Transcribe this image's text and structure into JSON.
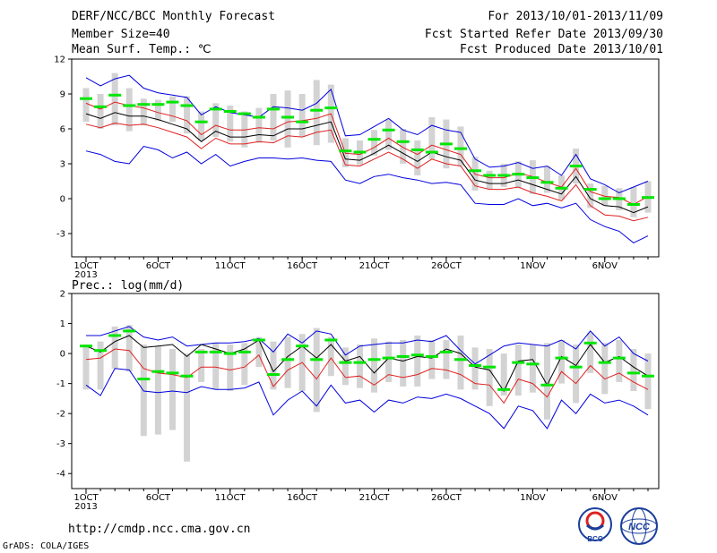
{
  "header": {
    "title": "DERF/NCC/BCC Monthly Forecast",
    "member_size": "Member Size=40",
    "variable_top": "Mean Surf. Temp.: ℃",
    "valid_period": "For 2013/10/01-2013/11/09",
    "fcst_started": "Fcst Started Refer Date 2013/09/30",
    "fcst_produced": "Fcst Produced Date 2013/10/01"
  },
  "footer": {
    "url": "http://cmdp.ncc.cma.gov.cn",
    "credit": "GrADS: COLA/IGES",
    "logo_bcc": "BCC",
    "logo_ncc": "NCC"
  },
  "colors": {
    "box": "#d3d3d3",
    "median": "#00e600",
    "mean": "#000000",
    "std_band": "#e02020",
    "minmax": "#0000dd"
  },
  "chart_data": [
    {
      "type": "line",
      "panel": "top",
      "ylabel": "Mean Surf. Temp.: ℃",
      "ylim": [
        -5,
        12
      ],
      "yticks": [
        -3,
        0,
        3,
        6,
        9,
        12
      ],
      "x": [
        1,
        2,
        3,
        4,
        5,
        6,
        7,
        8,
        9,
        10,
        11,
        12,
        13,
        14,
        15,
        16,
        17,
        18,
        19,
        20,
        21,
        22,
        23,
        24,
        25,
        26,
        27,
        28,
        29,
        30,
        31,
        32,
        33,
        34,
        35,
        36,
        37,
        38,
        39,
        40
      ],
      "xticks": [
        {
          "x": 1,
          "label": "1OCT",
          "sub": "2013"
        },
        {
          "x": 6,
          "label": "6OCT"
        },
        {
          "x": 11,
          "label": "11OCT"
        },
        {
          "x": 16,
          "label": "16OCT"
        },
        {
          "x": 21,
          "label": "21OCT"
        },
        {
          "x": 26,
          "label": "26OCT"
        },
        {
          "x": 32,
          "label": "1NOV"
        },
        {
          "x": 37,
          "label": "6NOV"
        }
      ],
      "series": [
        {
          "role": "max",
          "values": [
            10.4,
            9.7,
            10.3,
            10.6,
            9.5,
            9.1,
            8.9,
            8.7,
            7.2,
            7.9,
            7.4,
            7.2,
            7.0,
            7.9,
            7.8,
            7.6,
            8.2,
            9.4,
            5.4,
            5.5,
            6.2,
            6.9,
            5.9,
            5.5,
            6.3,
            5.9,
            5.7,
            3.4,
            2.7,
            2.8,
            3.1,
            2.6,
            2.8,
            2.0,
            3.8,
            1.7,
            1.2,
            0.5,
            1.0,
            1.5
          ]
        },
        {
          "role": "mean_plus_std",
          "values": [
            8.2,
            7.7,
            8.3,
            8.0,
            7.8,
            7.4,
            7.1,
            6.7,
            5.5,
            6.3,
            5.9,
            5.9,
            6.1,
            6.0,
            6.6,
            6.7,
            6.9,
            7.3,
            3.9,
            3.8,
            4.4,
            5.2,
            4.4,
            3.8,
            4.6,
            4.2,
            3.8,
            2.1,
            1.8,
            1.8,
            2.2,
            1.9,
            1.4,
            1.0,
            2.6,
            0.6,
            0.2,
            0.1,
            -0.5,
            0.2
          ]
        },
        {
          "role": "mean",
          "values": [
            7.3,
            6.9,
            7.4,
            7.1,
            7.1,
            6.8,
            6.4,
            6.0,
            4.9,
            5.8,
            5.3,
            5.3,
            5.5,
            5.4,
            6.0,
            6.0,
            6.3,
            6.6,
            3.4,
            3.3,
            3.9,
            4.6,
            3.9,
            3.2,
            4.0,
            3.6,
            3.3,
            1.6,
            1.3,
            1.3,
            1.6,
            1.2,
            0.8,
            0.4,
            1.9,
            0.0,
            -0.6,
            -0.7,
            -1.2,
            -0.7
          ]
        },
        {
          "role": "mean_minus_std",
          "values": [
            6.4,
            6.1,
            6.5,
            6.3,
            6.4,
            6.1,
            5.7,
            5.3,
            4.3,
            5.2,
            4.7,
            4.7,
            4.9,
            4.8,
            5.4,
            5.3,
            5.7,
            5.9,
            2.9,
            2.8,
            3.4,
            4.0,
            3.4,
            2.6,
            3.4,
            3.0,
            2.8,
            1.1,
            0.8,
            0.8,
            1.0,
            0.5,
            0.2,
            -0.2,
            1.2,
            -0.6,
            -1.4,
            -1.5,
            -1.9,
            -1.6
          ]
        },
        {
          "role": "min",
          "values": [
            4.1,
            3.8,
            3.2,
            3.0,
            4.5,
            4.2,
            3.5,
            4.0,
            3.0,
            3.8,
            2.8,
            3.2,
            3.5,
            3.5,
            3.4,
            3.5,
            3.3,
            3.2,
            1.6,
            1.3,
            1.9,
            2.1,
            1.8,
            1.6,
            1.3,
            1.4,
            1.2,
            -0.4,
            -0.5,
            -0.5,
            0.0,
            -0.6,
            -0.4,
            -0.8,
            -0.4,
            -1.8,
            -2.4,
            -2.8,
            -3.8,
            -3.2
          ]
        },
        {
          "role": "median",
          "values": [
            8.6,
            7.9,
            8.9,
            8.0,
            8.1,
            8.1,
            8.3,
            8.0,
            6.6,
            7.7,
            7.5,
            7.3,
            7.0,
            7.7,
            7.0,
            6.6,
            7.6,
            7.8,
            4.1,
            4.0,
            5.1,
            5.9,
            4.9,
            4.2,
            4.0,
            4.7,
            4.3,
            2.4,
            2.0,
            2.0,
            2.1,
            1.8,
            1.4,
            0.9,
            2.8,
            0.8,
            0.0,
            0.0,
            -0.5,
            0.1
          ]
        },
        {
          "role": "box_high",
          "values": [
            9.5,
            9.0,
            10.8,
            9.5,
            8.6,
            8.5,
            8.8,
            8.8,
            7.5,
            8.2,
            8.0,
            7.5,
            7.8,
            9.0,
            9.3,
            9.0,
            10.2,
            9.8,
            5.2,
            5.0,
            5.9,
            6.8,
            6.0,
            5.0,
            7.0,
            6.8,
            6.2,
            3.6,
            2.4,
            3.0,
            3.2,
            3.3,
            2.8,
            2.0,
            4.3,
            1.3,
            1.1,
            0.9,
            1.0,
            1.5
          ]
        },
        {
          "role": "box_low",
          "values": [
            6.6,
            6.0,
            6.3,
            5.8,
            6.3,
            6.7,
            6.6,
            5.6,
            5.0,
            5.3,
            4.9,
            4.4,
            4.8,
            5.0,
            4.4,
            5.3,
            4.6,
            4.8,
            2.7,
            2.9,
            3.7,
            4.2,
            3.0,
            2.0,
            3.4,
            2.6,
            2.8,
            0.7,
            0.8,
            1.0,
            0.9,
            0.4,
            0.5,
            -0.1,
            1.3,
            -0.8,
            -0.6,
            -1.0,
            -1.6,
            -1.2
          ]
        }
      ]
    },
    {
      "type": "line",
      "panel": "bottom",
      "ylabel": "Prec.: log(mm/d)",
      "ylim": [
        -4.5,
        2
      ],
      "yticks": [
        -4,
        -3,
        -2,
        -1,
        0,
        1,
        2
      ],
      "x": [
        1,
        2,
        3,
        4,
        5,
        6,
        7,
        8,
        9,
        10,
        11,
        12,
        13,
        14,
        15,
        16,
        17,
        18,
        19,
        20,
        21,
        22,
        23,
        24,
        25,
        26,
        27,
        28,
        29,
        30,
        31,
        32,
        33,
        34,
        35,
        36,
        37,
        38,
        39,
        40
      ],
      "xticks": [
        {
          "x": 1,
          "label": "1OCT",
          "sub": "2013"
        },
        {
          "x": 6,
          "label": "6OCT"
        },
        {
          "x": 11,
          "label": "11OCT"
        },
        {
          "x": 16,
          "label": "16OCT"
        },
        {
          "x": 21,
          "label": "21OCT"
        },
        {
          "x": 26,
          "label": "26OCT"
        },
        {
          "x": 32,
          "label": "1NOV"
        },
        {
          "x": 37,
          "label": "6NOV"
        }
      ],
      "series": [
        {
          "role": "max",
          "values": [
            0.6,
            0.6,
            0.75,
            0.9,
            0.55,
            0.45,
            0.55,
            0.25,
            0.3,
            0.35,
            0.35,
            0.4,
            0.5,
            0.05,
            0.65,
            0.35,
            0.75,
            0.65,
            -0.05,
            0.25,
            0.3,
            0.35,
            0.35,
            0.45,
            0.4,
            0.6,
            0.1,
            -0.35,
            -0.05,
            0.25,
            0.35,
            0.3,
            0.25,
            0.45,
            0.15,
            0.75,
            0.25,
            0.55,
            0.0,
            -0.25
          ]
        },
        {
          "role": "mean",
          "values": [
            0.25,
            0.05,
            0.4,
            0.6,
            0.2,
            0.25,
            0.3,
            -0.1,
            0.3,
            0.15,
            0.0,
            0.15,
            0.45,
            -0.6,
            -0.1,
            0.25,
            -0.15,
            0.3,
            -0.25,
            -0.1,
            -0.65,
            -0.15,
            -0.25,
            -0.1,
            -0.15,
            0.15,
            0.0,
            -0.45,
            -0.55,
            -1.25,
            -0.25,
            -0.2,
            -1.05,
            -0.1,
            -0.4,
            0.3,
            -0.3,
            -0.1,
            -0.45,
            -0.75
          ]
        },
        {
          "role": "mean_minus_std",
          "values": [
            -0.2,
            -0.15,
            0.15,
            0.1,
            -0.5,
            -0.65,
            -0.7,
            -0.8,
            -0.45,
            -0.45,
            -0.55,
            -0.45,
            -0.05,
            -1.1,
            -0.55,
            -0.3,
            -0.85,
            -0.15,
            -0.8,
            -0.75,
            -1.05,
            -0.7,
            -0.8,
            -0.7,
            -0.5,
            -0.55,
            -0.7,
            -1.0,
            -1.05,
            -1.65,
            -0.85,
            -1.0,
            -1.45,
            -0.6,
            -1.0,
            -0.4,
            -0.85,
            -0.65,
            -0.95,
            -1.2
          ]
        },
        {
          "role": "min",
          "values": [
            -1.05,
            -1.4,
            -0.5,
            -0.55,
            -1.25,
            -1.3,
            -1.25,
            -1.3,
            -1.1,
            -1.2,
            -1.2,
            -1.15,
            -0.95,
            -2.05,
            -1.55,
            -1.25,
            -1.75,
            -1.05,
            -1.65,
            -1.55,
            -1.95,
            -1.55,
            -1.65,
            -1.45,
            -1.5,
            -1.35,
            -1.5,
            -1.75,
            -2.0,
            -2.5,
            -1.75,
            -1.9,
            -2.5,
            -1.55,
            -2.0,
            -1.35,
            -1.65,
            -1.55,
            -1.75,
            -2.05
          ]
        },
        {
          "role": "median",
          "values": [
            0.25,
            0.1,
            0.6,
            0.75,
            -0.85,
            -0.6,
            -0.65,
            -0.75,
            0.05,
            0.05,
            0.0,
            0.05,
            0.45,
            -0.7,
            -0.2,
            0.25,
            -0.2,
            0.45,
            -0.3,
            -0.3,
            -0.2,
            -0.15,
            -0.1,
            -0.05,
            -0.1,
            0.05,
            -0.2,
            -0.4,
            -0.45,
            -1.2,
            -0.3,
            -0.35,
            -1.05,
            -0.15,
            -0.45,
            0.35,
            -0.3,
            -0.15,
            -0.65,
            -0.75
          ]
        },
        {
          "role": "box_high",
          "values": [
            0.3,
            0.4,
            0.9,
            0.95,
            0.3,
            0.25,
            0.15,
            0.0,
            0.15,
            0.35,
            0.3,
            0.35,
            0.55,
            0.4,
            0.55,
            0.65,
            0.85,
            0.55,
            0.2,
            0.3,
            0.5,
            0.4,
            0.45,
            0.6,
            0.45,
            0.45,
            0.6,
            0.2,
            0.15,
            0.0,
            0.3,
            0.3,
            0.35,
            0.45,
            0.3,
            0.7,
            0.35,
            0.45,
            0.15,
            0.0
          ]
        },
        {
          "role": "box_low",
          "values": [
            -1.2,
            -1.2,
            -0.5,
            -0.6,
            -2.75,
            -2.7,
            -2.55,
            -3.6,
            -0.95,
            -1.2,
            -1.25,
            -1.05,
            -0.45,
            -1.2,
            -1.15,
            -1.25,
            -1.95,
            -0.75,
            -1.05,
            -1.15,
            -1.3,
            -0.95,
            -1.1,
            -1.1,
            -0.85,
            -0.85,
            -1.2,
            -1.2,
            -1.75,
            -1.4,
            -1.4,
            -1.3,
            -2.2,
            -1.0,
            -1.65,
            -0.65,
            -1.35,
            -0.95,
            -1.25,
            -1.85
          ]
        }
      ]
    }
  ]
}
